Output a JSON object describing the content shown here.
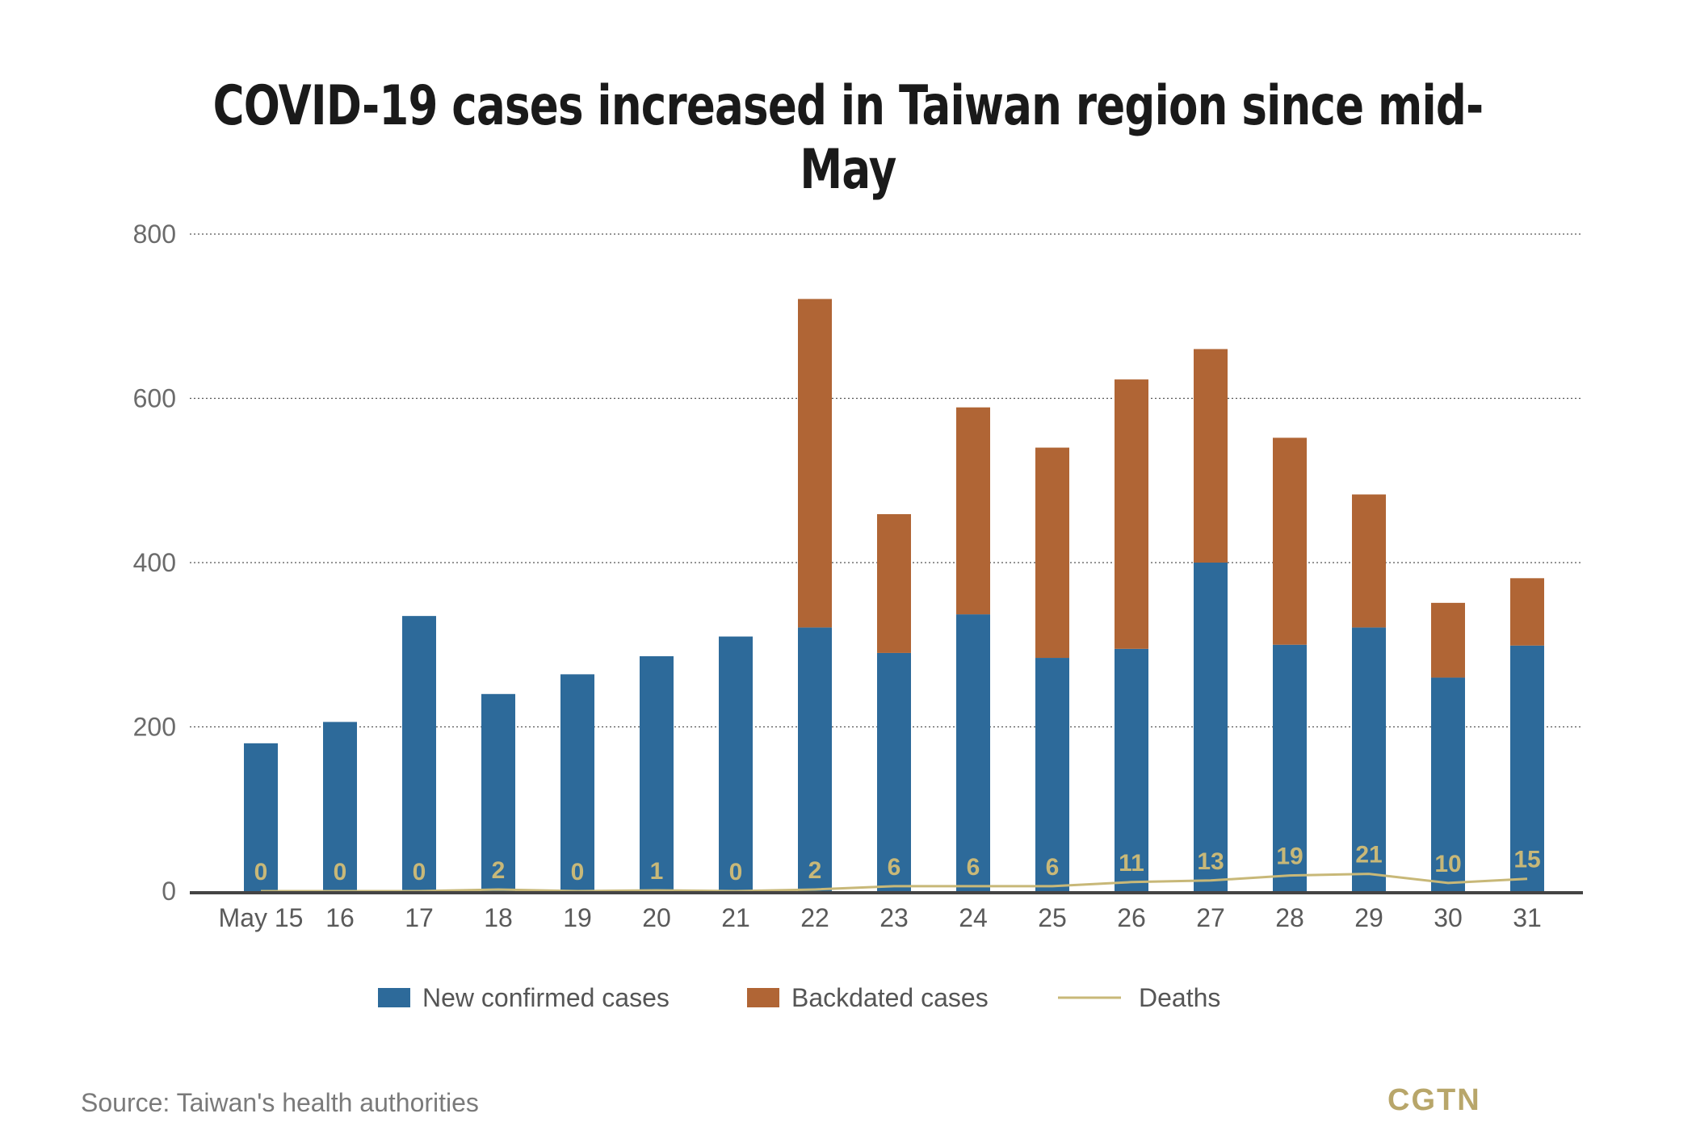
{
  "title": "COVID-19 cases increased in Taiwan region since mid-May",
  "source": "Source: Taiwan's health authorities",
  "brand": "CGTN",
  "colors": {
    "new_confirmed": "#2d6a9a",
    "backdated": "#b06535",
    "deaths": "#c8b878",
    "brand": "#b8a66a",
    "axis": "#444444",
    "grid": "#555555"
  },
  "chart_data": {
    "type": "bar",
    "stacked": true,
    "title": "COVID-19 cases increased in Taiwan region since mid-May",
    "categories": [
      "May 15",
      "16",
      "17",
      "18",
      "19",
      "20",
      "21",
      "22",
      "23",
      "24",
      "25",
      "26",
      "27",
      "28",
      "29",
      "30",
      "31"
    ],
    "ylim": [
      0,
      800
    ],
    "yticks": [
      0,
      200,
      400,
      600,
      800
    ],
    "grid": true,
    "legend_position": "bottom",
    "series": [
      {
        "name": "New confirmed cases",
        "type": "bar",
        "values": [
          180,
          206,
          335,
          240,
          264,
          286,
          310,
          321,
          290,
          337,
          284,
          295,
          400,
          300,
          321,
          260,
          299
        ]
      },
      {
        "name": "Backdated cases",
        "type": "bar",
        "values": [
          0,
          0,
          0,
          0,
          0,
          0,
          0,
          400,
          169,
          252,
          256,
          328,
          260,
          252,
          162,
          91,
          82
        ]
      },
      {
        "name": "Deaths",
        "type": "line",
        "values": [
          0,
          0,
          0,
          2,
          0,
          1,
          0,
          2,
          6,
          6,
          6,
          11,
          13,
          19,
          21,
          10,
          15
        ]
      }
    ]
  }
}
